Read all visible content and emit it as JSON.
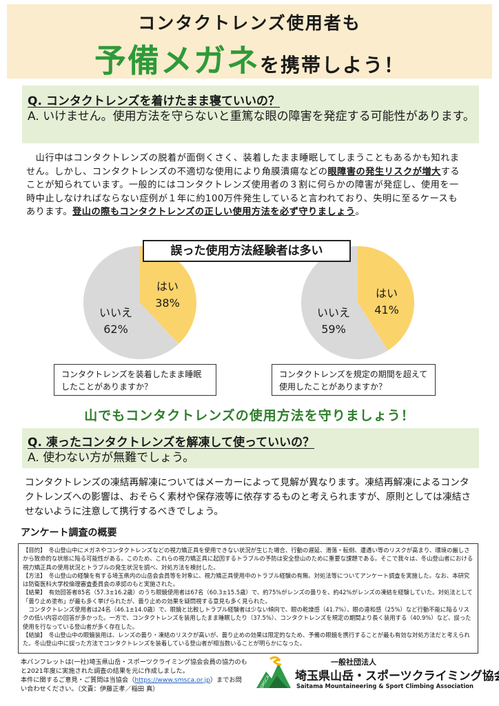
{
  "header": {
    "line1": "コンタクトレンズ使用者も",
    "line2_big": "予備メガネ",
    "line2_rest": "を携帯しよう！"
  },
  "q1": {
    "question": "Q. コンタクトレンズを着けたまま寝ていいの？",
    "answer": "A. いけません。使用方法を守らないと重篤な眼の障害を発症する可能性があります。"
  },
  "para1": {
    "part1": "　山行中はコンタクトレンズの脱着が面倒くさく、装着したまま睡眠してしまうこともあるかも知れません。しかし、コンタクトレンズの不適切な使用により角膜潰瘍などの",
    "bold1": "眼障害の発生リスクが増大",
    "part2": "することが知られています。一般的にはコンタクトレンズ使用者の３割に何らかの障害が発症し、使用を一時中止しなければならない症例が１年に約100万件発生していると言われており、失明に至るケースもあります。",
    "bold2": "登山の際もコンタクトレンズの正しい使用方法を必ず守りましょう",
    "end": "。"
  },
  "chart_section_title": "誤った使用方法経験者は多い",
  "chart_data": [
    {
      "type": "pie",
      "title": "コンタクトレンズを装着したまま睡眠したことがありますか？",
      "labels": [
        "はい",
        "いいえ"
      ],
      "values": [
        38,
        62
      ],
      "value_labels": [
        "38%",
        "62%"
      ],
      "colors": [
        "#fbd36b",
        "#d9d9d9"
      ]
    },
    {
      "type": "pie",
      "title": "コンタクトレンズを規定の期間を超えて使用したことがありますか？",
      "labels": [
        "はい",
        "いいえ"
      ],
      "values": [
        41,
        59
      ],
      "value_labels": [
        "41%",
        "59%"
      ],
      "colors": [
        "#fbd36b",
        "#d9d9d9"
      ]
    }
  ],
  "green_heading": "山でもコンタクトレンズの使用方法を守りましょう！",
  "q2": {
    "question": "Q. 凍ったコンタクトレンズを解凍して使っていいの？",
    "answer": "A. 使わない方が無難でしょう。"
  },
  "para2": "コンタクトレンズの凍結再解凍についてはメーカーによって見解が異なります。凍結再解凍によるコンタクトレンズへの影響は、おそらく素材や保存液等に依存するものと考えられますが、原則としては凍結させないように注意して携行するべきでしょう。",
  "survey": {
    "heading": "アンケート調査の概要",
    "purpose": "【目的】　冬山登山中にメガネやコンタクトレンズなどの視力矯正具を使用できない状況が生じた場合、行動の遅延、滑落・転倒、遭遇い等のリスクが高まり、環境の厳しさから致命的な状態に陥る可能性がある。このため、これらの視力矯正具に起因するトラブルの予防は安全登山のために重要な課題である。そこで我々は、冬山登山者における視力矯正具の使用状況とトラブルの発生状況を調べ、対処方法を検討した。",
    "method": "【方法】　冬山登山の経験を有する埼玉県内の山岳会会員等を対象に、視力矯正具使用中のトラブル経験の有無、対処法等についてアンケート調査を実施した。なお、本研究は防衛医科大学校倫理審査委員会の承認のもと実施された。",
    "result1": "【結果】　有効回答者85名（57.3±16.2歳）のうち眼鏡使用者は67名（60.3±15.5歳）で、約75%がレンズの曇りを、約42%がレンズの凍結を経験していた。対処法として「曇り止め塗布」が最も多く挙げられたが、曇り止めの効果を疑問視する意見も多く見られた。",
    "result2": "　コンタクトレンズ使用者は24名（46.1±14.0歳）で、眼鏡と比較しトラブル経験者は少ない傾向で、眼の乾燥感（41.7%）、眼の違和感（25%）など行動不能に陥るリスクの低い内容の回答が多かった。一方で、コンタクトレンズを装用したまま睡眠したり（37.5%）、コンタクトレンズを規定の期間より長く装用する（40.9%）など、誤った使用を行なっている登山者が多く存在した。",
    "conclusion": "【結論】　冬山登山中の眼鏡装用は、レンズの曇り・凍結のリスクが高いが、曇り止めの効果は限定的なため、予備の眼鏡を携行することが最も有効な対処方法だと考えられた。冬山登山中に誤った方法でコンタクトレンズを装着している登山者が相当数いることが明らかになった。"
  },
  "footer": {
    "line1": "本パンフレットは(一社)埼玉県山岳・スポーツクライミング協会会員の協力のもと2021年度に実施された調査の結果を元に作成しました。",
    "line2_prefix": "本件に関するご意見・ご質問は当協会（",
    "url": "https://www.smsca.or.jp",
    "line2_suffix": "）までお問い合わせください。（文責：伊藤正孝／稲田 真）",
    "org_small": "一般社団法人",
    "org_name": "埼玉県山岳・スポーツクライミング協会",
    "org_en": "Saitama Mountaineering & Sport Climbing Association",
    "logo_text": "SMSCA"
  }
}
